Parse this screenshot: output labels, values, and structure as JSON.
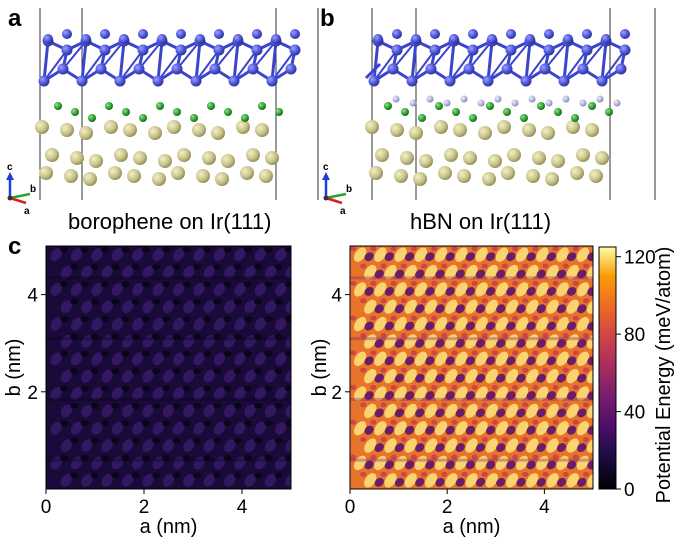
{
  "panels": {
    "a": {
      "letter": "a",
      "caption": "borophene on Ir(111)",
      "axes_labels": [
        "c",
        "b",
        "a"
      ]
    },
    "b": {
      "letter": "b",
      "caption": "hBN on Ir(111)",
      "axes_labels": [
        "c",
        "b",
        "a"
      ]
    },
    "c": {
      "letter": "c"
    }
  },
  "colors": {
    "boron": "#4a52d8",
    "substrate_top": "#2fa02f",
    "ir": "#c9c48a",
    "n_atom": "#b3b3d9",
    "axis_c": "#1f3fd6",
    "axis_b": "#2f9f2f",
    "axis_a": "#d62020"
  },
  "chart_data": [
    {
      "type": "heatmap",
      "title": "borophene on Ir(111)",
      "xlabel": "a (nm)",
      "ylabel": "b (nm)",
      "xlim": [
        0,
        5
      ],
      "ylim": [
        0,
        5
      ],
      "xticks": [
        "0",
        "2",
        "4"
      ],
      "yticks": [
        "2",
        "4"
      ],
      "value_range_meV": [
        0,
        25
      ],
      "description": "low potential energy landscape (mostly dark)"
    },
    {
      "type": "heatmap",
      "title": "hBN on Ir(111)",
      "xlabel": "a (nm)",
      "ylabel": "b (nm)",
      "xlim": [
        0,
        5
      ],
      "ylim": [
        0,
        5
      ],
      "xticks": [
        "0",
        "2",
        "4"
      ],
      "yticks": [
        "2",
        "4"
      ],
      "value_range_meV": [
        20,
        125
      ]
    }
  ],
  "colorbar": {
    "label": "Potential Energy (meV/atom)",
    "ticks": [
      "0",
      "40",
      "80",
      "120"
    ],
    "tick_values": [
      0,
      40,
      80,
      120
    ],
    "range": [
      0,
      125
    ]
  }
}
